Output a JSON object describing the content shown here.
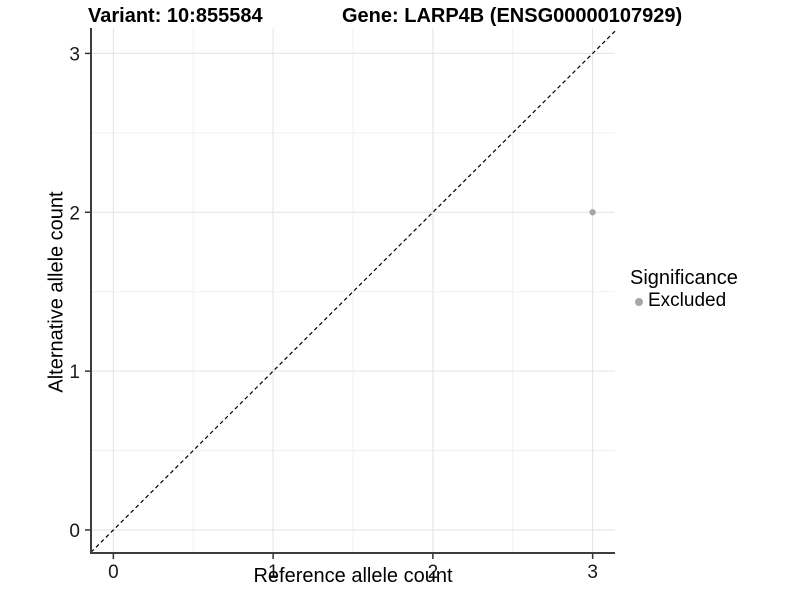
{
  "titles": {
    "variant": "Variant: 10:855584",
    "gene": "Gene: LARP4B (ENSG00000107929)"
  },
  "chart_data": {
    "type": "scatter",
    "title_left": "Variant: 10:855584",
    "title_right": "Gene: LARP4B (ENSG00000107929)",
    "xlabel": "Reference allele count",
    "ylabel": "Alternative allele count",
    "xlim": [
      -0.14,
      3.14
    ],
    "ylim": [
      -0.145,
      3.16
    ],
    "x_ticks": [
      0,
      1,
      2,
      3
    ],
    "y_ticks": [
      0,
      1,
      2,
      3
    ],
    "x_minor_ticks": [
      0.5,
      1.5,
      2.5
    ],
    "y_minor_ticks": [
      0.5,
      1.5,
      2.5
    ],
    "grid": true,
    "reference_line": {
      "type": "identity",
      "style": "dashed",
      "color": "#000000"
    },
    "series": [
      {
        "name": "Excluded",
        "color": "#a6a6a6",
        "points": [
          {
            "x": 3,
            "y": 2
          }
        ]
      }
    ],
    "legend": {
      "title": "Significance",
      "position": "right",
      "entries": [
        {
          "label": "Excluded",
          "color": "#a6a6a6"
        }
      ]
    },
    "colors": {
      "background": "#ffffff",
      "grid_major": "#e3e3e3",
      "grid_minor": "#f1f1f1",
      "axis_line": "#3d3d3d",
      "tick_mark": "#333333",
      "tick_label": "#1a1a1a"
    }
  }
}
